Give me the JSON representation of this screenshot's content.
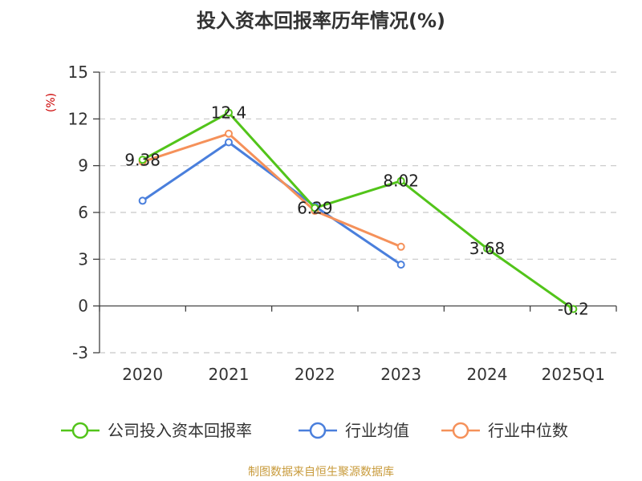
{
  "title": "投入资本回报率历年情况(%)",
  "source": "制图数据来自恒生聚源数据库",
  "chart_data": {
    "type": "line",
    "title": "投入资本回报率历年情况(%)",
    "ylabel": "(%)",
    "xlabel": "",
    "categories": [
      "2020",
      "2021",
      "2022",
      "2023",
      "2024",
      "2025Q1"
    ],
    "ylim": [
      -3,
      15
    ],
    "yticks": [
      -3,
      0,
      3,
      6,
      9,
      12,
      15
    ],
    "grid": true,
    "legend_position": "bottom",
    "series": [
      {
        "name": "公司投入资本回报率",
        "color": "#52c41a",
        "values": [
          9.38,
          12.4,
          6.29,
          8.02,
          3.68,
          -0.2
        ],
        "labels": [
          "9.38",
          "12.4",
          "6.29",
          "8.02",
          "3.68",
          "-0.2"
        ]
      },
      {
        "name": "行业均值",
        "color": "#4a7fdc",
        "values": [
          6.75,
          10.5,
          6.4,
          2.65,
          null,
          null
        ]
      },
      {
        "name": "行业中位数",
        "color": "#f5915a",
        "values": [
          9.25,
          11.05,
          6.1,
          3.8,
          null,
          null
        ]
      }
    ]
  }
}
